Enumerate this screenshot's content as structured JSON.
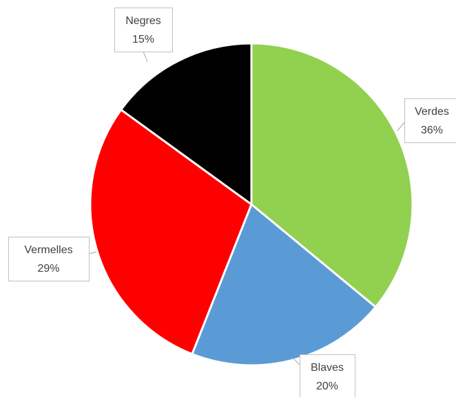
{
  "chart_data": {
    "type": "pie",
    "title": "",
    "start_angle_deg": 0,
    "direction": "clockwise",
    "slices": [
      {
        "name": "Verdes",
        "value": 36,
        "label": "36%",
        "color": "#92d050"
      },
      {
        "name": "Blaves",
        "value": 20,
        "label": "20%",
        "color": "#5b9bd5"
      },
      {
        "name": "Vermelles",
        "value": 29,
        "label": "29%",
        "color": "#ff0000"
      },
      {
        "name": "Negres",
        "value": 15,
        "label": "15%",
        "color": "#000000"
      }
    ],
    "legend": "none",
    "data_labels": "callout"
  }
}
